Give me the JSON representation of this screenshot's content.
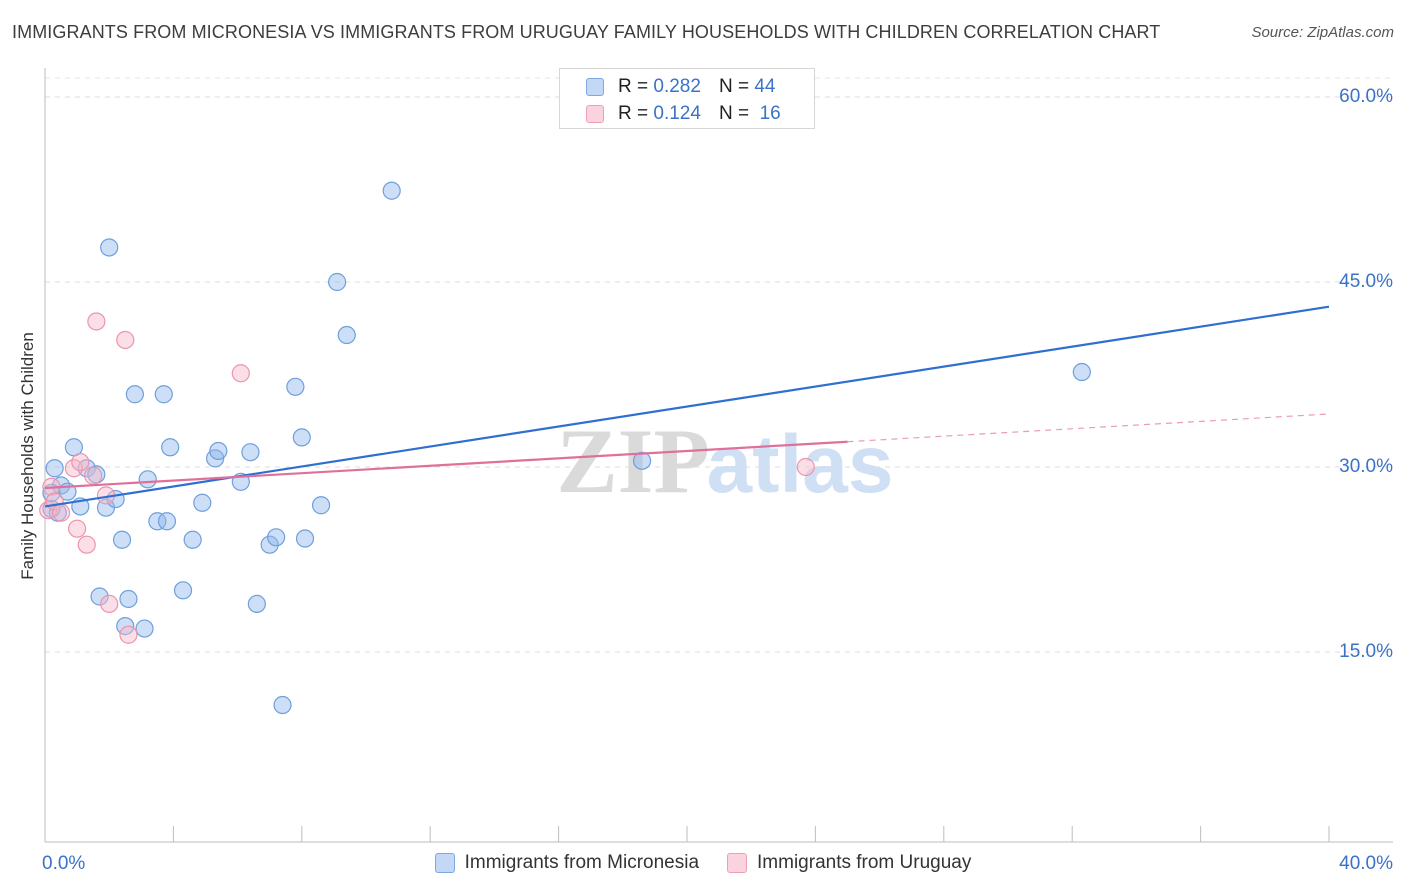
{
  "chart_data": {
    "type": "scatter",
    "title": "IMMIGRANTS FROM MICRONESIA VS IMMIGRANTS FROM URUGUAY FAMILY HOUSEHOLDS WITH CHILDREN CORRELATION CHART",
    "source": "Source: ZipAtlas.com",
    "ylabel": "Family Households with Children",
    "xlim": [
      0,
      40
    ],
    "ylim": [
      0,
      64
    ],
    "x_tick_labels": [
      "0.0%",
      "40.0%"
    ],
    "y_ticks": [
      {
        "value": 15,
        "label": "15.0%"
      },
      {
        "value": 30,
        "label": "30.0%"
      },
      {
        "value": 45,
        "label": "45.0%"
      },
      {
        "value": 60,
        "label": "60.0%"
      }
    ],
    "watermark": {
      "zip": "ZIP",
      "atlas": "atlas"
    },
    "series": [
      {
        "name": "Immigrants from Micronesia",
        "r_label": "R =",
        "r_value": "0.282",
        "n_label": "N =",
        "n_value": "44",
        "color": "#8fb8ec",
        "stroke": "#6f9fdc",
        "line_color": "#2f6fd1",
        "trend": {
          "x0": 0,
          "y0": 26.8,
          "x1": 40,
          "y1": 43.0,
          "solid_to": 40
        },
        "points": [
          [
            0.2,
            26.6
          ],
          [
            0.3,
            29.9
          ],
          [
            0.5,
            28.5
          ],
          [
            0.7,
            28.0
          ],
          [
            0.9,
            31.6
          ],
          [
            1.1,
            26.8
          ],
          [
            1.3,
            29.9
          ],
          [
            1.6,
            29.4
          ],
          [
            1.7,
            19.5
          ],
          [
            1.9,
            26.7
          ],
          [
            2.0,
            47.8
          ],
          [
            2.2,
            27.4
          ],
          [
            2.4,
            24.1
          ],
          [
            2.5,
            17.1
          ],
          [
            2.6,
            19.3
          ],
          [
            2.8,
            35.9
          ],
          [
            3.1,
            16.9
          ],
          [
            3.2,
            29.0
          ],
          [
            3.5,
            25.6
          ],
          [
            3.7,
            35.9
          ],
          [
            3.8,
            25.6
          ],
          [
            3.9,
            31.6
          ],
          [
            4.3,
            20.0
          ],
          [
            4.6,
            24.1
          ],
          [
            4.9,
            27.1
          ],
          [
            5.3,
            30.7
          ],
          [
            5.4,
            31.3
          ],
          [
            6.1,
            28.8
          ],
          [
            6.4,
            31.2
          ],
          [
            6.6,
            18.9
          ],
          [
            7.0,
            23.7
          ],
          [
            7.2,
            24.3
          ],
          [
            7.4,
            10.7
          ],
          [
            7.8,
            36.5
          ],
          [
            8.0,
            32.4
          ],
          [
            8.1,
            24.2
          ],
          [
            8.6,
            26.9
          ],
          [
            9.1,
            45.0
          ],
          [
            9.4,
            40.7
          ],
          [
            10.8,
            52.4
          ],
          [
            18.6,
            30.5
          ],
          [
            32.3,
            37.7
          ],
          [
            0.2,
            27.9
          ],
          [
            0.4,
            26.3
          ]
        ]
      },
      {
        "name": "Immigrants from Uruguay",
        "r_label": "R =",
        "r_value": "0.124",
        "n_label": "N =",
        "n_value": "16",
        "color": "#f6b8ca",
        "stroke": "#ee93ad",
        "line_color": "#e0709a",
        "trend": {
          "x0": 0,
          "y0": 28.3,
          "x1": 40,
          "y1": 34.3,
          "solid_to": 25
        },
        "points": [
          [
            0.1,
            26.5
          ],
          [
            0.2,
            28.4
          ],
          [
            0.3,
            27.2
          ],
          [
            0.5,
            26.3
          ],
          [
            0.9,
            29.9
          ],
          [
            1.0,
            25.0
          ],
          [
            1.1,
            30.4
          ],
          [
            1.3,
            23.7
          ],
          [
            1.5,
            29.3
          ],
          [
            1.6,
            41.8
          ],
          [
            1.9,
            27.7
          ],
          [
            2.0,
            18.9
          ],
          [
            2.5,
            40.3
          ],
          [
            2.6,
            16.4
          ],
          [
            6.1,
            37.6
          ],
          [
            23.7,
            30.0
          ]
        ]
      }
    ]
  }
}
